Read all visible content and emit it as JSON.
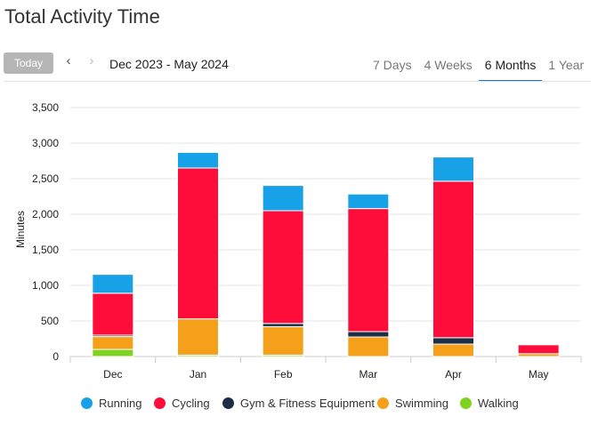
{
  "page": {
    "title": "Total Activity Time"
  },
  "toolbar": {
    "today_label": "Today",
    "prev_glyph": "‹",
    "next_glyph": "›",
    "date_range": "Dec 2023 - May 2024",
    "tabs": [
      {
        "label": "7 Days",
        "active": false
      },
      {
        "label": "4 Weeks",
        "active": false
      },
      {
        "label": "6 Months",
        "active": true
      },
      {
        "label": "1 Year",
        "active": false
      }
    ]
  },
  "chart_data": {
    "type": "bar",
    "stacked": true,
    "categories": [
      "Dec",
      "Jan",
      "Feb",
      "Mar",
      "Apr",
      "May"
    ],
    "series": [
      {
        "name": "Walking",
        "color": "#7ed321",
        "values": [
          100,
          20,
          20,
          0,
          0,
          0
        ]
      },
      {
        "name": "Swimming",
        "color": "#f5a01a",
        "values": [
          180,
          510,
          400,
          275,
          175,
          40
        ]
      },
      {
        "name": "Gym & Fitness Equipment",
        "color": "#1b2e45",
        "values": [
          20,
          0,
          45,
          75,
          90,
          0
        ]
      },
      {
        "name": "Cycling",
        "color": "#ff0d3a",
        "values": [
          590,
          2120,
          1585,
          1730,
          2200,
          125
        ]
      },
      {
        "name": "Running",
        "color": "#17a2e8",
        "values": [
          265,
          220,
          355,
          205,
          340,
          0
        ]
      }
    ],
    "legend_order": [
      "Running",
      "Cycling",
      "Gym & Fitness Equipment",
      "Swimming",
      "Walking"
    ],
    "legend_placement": "bottom",
    "ylabel": "Minutes",
    "xlabel": "",
    "ylim": [
      0,
      3500
    ],
    "yticks": [
      0,
      500,
      1000,
      1500,
      2000,
      2500,
      3000,
      3500
    ],
    "ytick_labels": [
      "0",
      "500",
      "1,000",
      "1,500",
      "2,000",
      "2,500",
      "3,000",
      "3,500"
    ],
    "grid": true
  }
}
